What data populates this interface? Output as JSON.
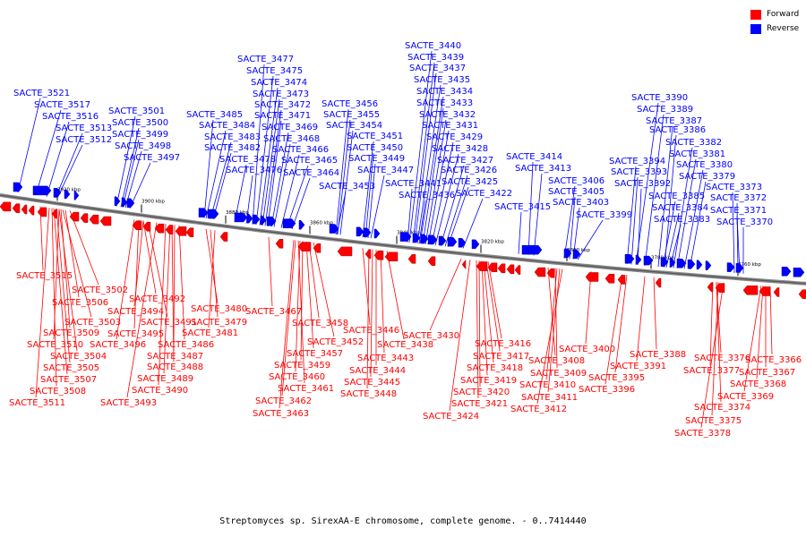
{
  "legend": {
    "forward_label": "Forward",
    "reverse_label": "Reverse",
    "forward_color": "#ff0000",
    "reverse_color": "#0000ff"
  },
  "caption": "Streptomyces sp. SirexAA-E chromosome, complete genome. - 0..7414440",
  "ticks": [
    "3920 kbp",
    "3900 kbp",
    "3880 kbp",
    "3860 kbp",
    "3840 kbp",
    "3820 kbp",
    "3800 kbp",
    "3780 kbp",
    "3760 kbp"
  ],
  "reverse_labels": [
    "SACTE_3521",
    "SACTE_3517",
    "SACTE_3516",
    "SACTE_3513",
    "SACTE_3512",
    "SACTE_3501",
    "SACTE_3500",
    "SACTE_3499",
    "SACTE_3498",
    "SACTE_3497",
    "SACTE_3485",
    "SACTE_3484",
    "SACTE_3483",
    "SACTE_3482",
    "SACTE_3478",
    "SACTE_3476",
    "SACTE_3477",
    "SACTE_3475",
    "SACTE_3474",
    "SACTE_3473",
    "SACTE_3472",
    "SACTE_3471",
    "SACTE_3469",
    "SACTE_3468",
    "SACTE_3466",
    "SACTE_3465",
    "SACTE_3464",
    "SACTE_3456",
    "SACTE_3455",
    "SACTE_3454",
    "SACTE_3451",
    "SACTE_3450",
    "SACTE_3449",
    "SACTE_3447",
    "SACTE_3453",
    "SACTE_3440",
    "SACTE_3439",
    "SACTE_3437",
    "SACTE_3435",
    "SACTE_3434",
    "SACTE_3433",
    "SACTE_3432",
    "SACTE_3431",
    "SACTE_3429",
    "SACTE_3428",
    "SACTE_3427",
    "SACTE_3426",
    "SACTE_3425",
    "SACTE_3441",
    "SACTE_3436",
    "SACTE_3422",
    "SACTE_3414",
    "SACTE_3413",
    "SACTE_3415",
    "SACTE_3406",
    "SACTE_3405",
    "SACTE_3403",
    "SACTE_3399",
    "SACTE_3390",
    "SACTE_3389",
    "SACTE_3387",
    "SACTE_3386",
    "SACTE_3382",
    "SACTE_3381",
    "SACTE_3380",
    "SACTE_3379",
    "SACTE_3394",
    "SACTE_3393",
    "SACTE_3392",
    "SACTE_3385",
    "SACTE_3384",
    "SACTE_3383",
    "SACTE_3373",
    "SACTE_3372",
    "SACTE_3371",
    "SACTE_3370"
  ],
  "forward_labels": [
    "SACTE_3515",
    "SACTE_3502",
    "SACTE_3506",
    "SACTE_3503",
    "SACTE_3509",
    "SACTE_3510",
    "SACTE_3504",
    "SACTE_3505",
    "SACTE_3507",
    "SACTE_3508",
    "SACTE_3511",
    "SACTE_3492",
    "SACTE_3494",
    "SACTE_3491",
    "SACTE_3495",
    "SACTE_3496",
    "SACTE_3486",
    "SACTE_3487",
    "SACTE_3488",
    "SACTE_3489",
    "SACTE_3490",
    "SACTE_3493",
    "SACTE_3480",
    "SACTE_3479",
    "SACTE_3481",
    "SACTE_3467",
    "SACTE_3458",
    "SACTE_3452",
    "SACTE_3457",
    "SACTE_3459",
    "SACTE_3460",
    "SACTE_3461",
    "SACTE_3462",
    "SACTE_3463",
    "SACTE_3446",
    "SACTE_3438",
    "SACTE_3443",
    "SACTE_3444",
    "SACTE_3445",
    "SACTE_3448",
    "SACTE_3430",
    "SACTE_3416",
    "SACTE_3417",
    "SACTE_3418",
    "SACTE_3419",
    "SACTE_3420",
    "SACTE_3421",
    "SACTE_3424",
    "SACTE_3408",
    "SACTE_3409",
    "SACTE_3410",
    "SACTE_3411",
    "SACTE_3412",
    "SACTE_3400",
    "SACTE_3388",
    "SACTE_3391",
    "SACTE_3395",
    "SACTE_3396",
    "SACTE_3376",
    "SACTE_3377",
    "SACTE_3374",
    "SACTE_3375",
    "SACTE_3378",
    "SACTE_3366",
    "SACTE_3367",
    "SACTE_3368",
    "SACTE_3369"
  ]
}
